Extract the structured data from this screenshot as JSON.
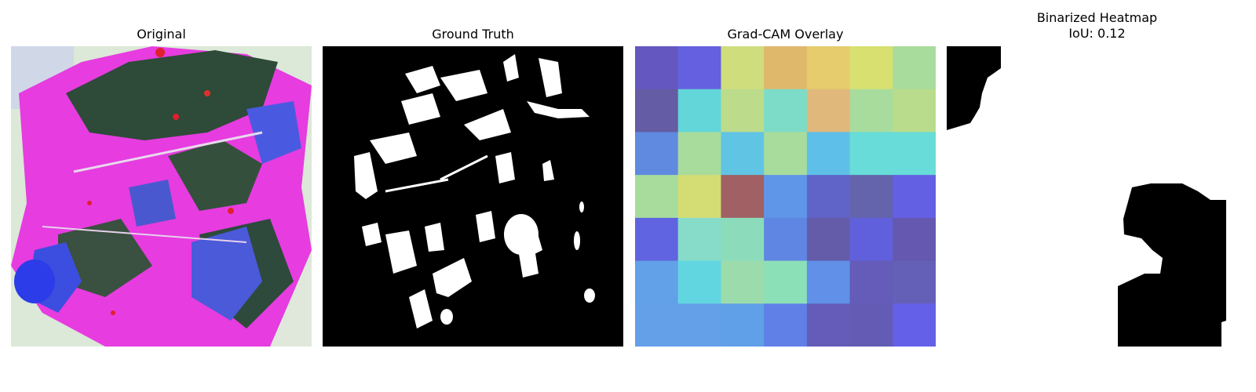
{
  "panels": {
    "original": {
      "title": "Original"
    },
    "ground_truth": {
      "title": "Ground Truth"
    },
    "gradcam": {
      "title": "Grad-CAM Overlay",
      "grid": [
        [
          "#6458c0",
          "#6460e0",
          "#cfdd7c",
          "#e0b86c",
          "#e6cc6c",
          "#d8e070",
          "#a8dc9c"
        ],
        [
          "#645ca4",
          "#62d6d8",
          "#bcdc8c",
          "#7ddcc8",
          "#e0b87c",
          "#a8dc9c",
          "#b8dc8c"
        ],
        [
          "#5f8ae0",
          "#a8dc9c",
          "#60c4e4",
          "#a8dc9c",
          "#5ec0e8",
          "#68dcd8",
          "#68dcd8"
        ],
        [
          "#a8dc9c",
          "#d4dc74",
          "#a06064",
          "#6096e8",
          "#6064c8",
          "#6464ac",
          "#6460e4"
        ],
        [
          "#6064e0",
          "#86dcc8",
          "#8cdcbc",
          "#6086e4",
          "#645ca8",
          "#6060dc",
          "#6458b0"
        ],
        [
          "#62a0e8",
          "#62d6e0",
          "#9cdcac",
          "#8ce0b8",
          "#6090e8",
          "#645cb8",
          "#6460b8"
        ],
        [
          "#64a0e8",
          "#64a0e8",
          "#60a0e8",
          "#6080e8",
          "#645cb8",
          "#645cb4",
          "#6460e8"
        ]
      ]
    },
    "binarized": {
      "title_line1": "Binarized Heatmap",
      "title_line2": "IoU: 0.12"
    }
  },
  "colors": {
    "mask_fg": "#ffffff",
    "mask_bg": "#000000",
    "leaf_magenta": "#e63ce0",
    "leaf_dark": "#2e4a38",
    "leaf_blue": "#3c4ee0",
    "bg_pale": "#d8e8d4"
  }
}
